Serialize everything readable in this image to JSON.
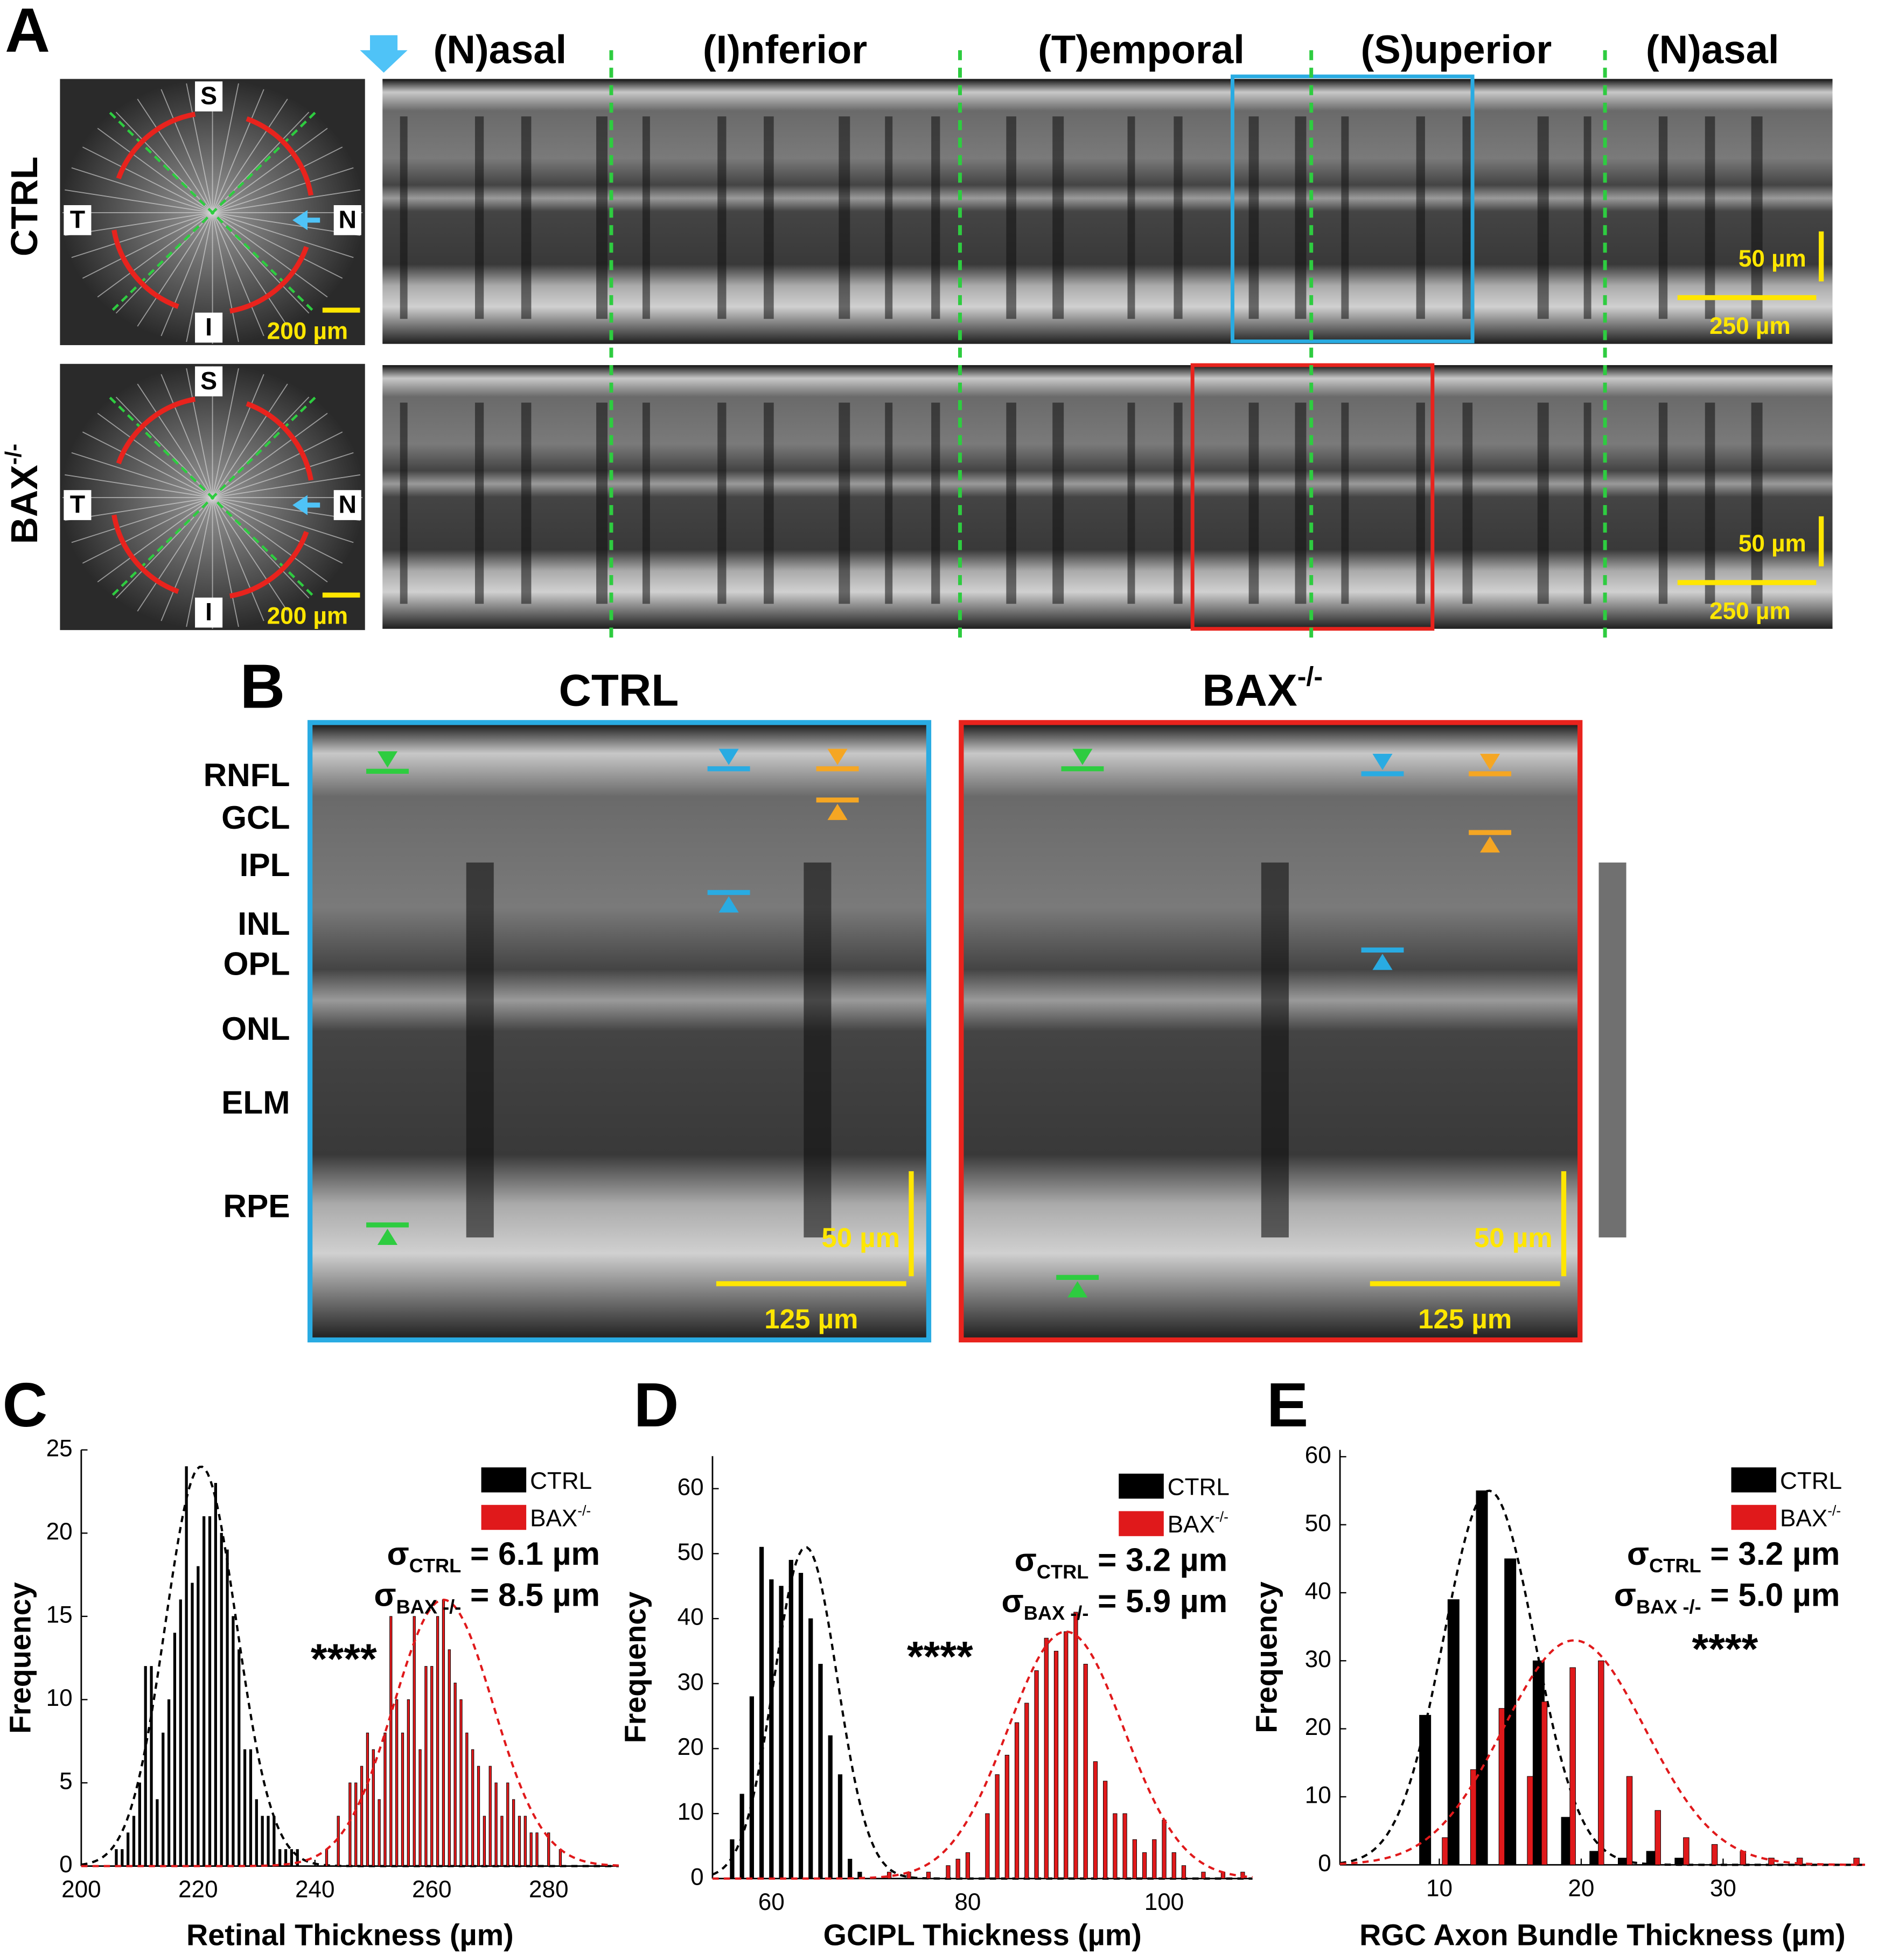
{
  "figure": {
    "panel_labels": [
      "A",
      "B",
      "C",
      "D",
      "E"
    ],
    "a": {
      "regions": [
        "(N)asal",
        "(I)nferior",
        "(T)emporal",
        "(S)uperior",
        "(N)asal"
      ],
      "rows": [
        {
          "label": "CTRL"
        },
        {
          "label": "BAX",
          "sup": "-/-"
        }
      ],
      "orientation": [
        "S",
        "T",
        "N",
        "I"
      ],
      "scale_fundus": "200 µm",
      "scale_depth": "50 µm",
      "scale_length": "250 µm"
    },
    "b": {
      "titles": [
        {
          "label": "CTRL"
        },
        {
          "label": "BAX",
          "sup": "-/-"
        }
      ],
      "layers": [
        "RNFL",
        "GCL",
        "IPL",
        "INL",
        "OPL",
        "ONL",
        "ELM",
        "RPE"
      ],
      "scale_depth": "50 µm",
      "scale_length": "125 µm"
    }
  },
  "chart_data": [
    {
      "type": "histogram",
      "xlabel": "Retinal Thickness (µm)",
      "ylabel": "Frequency",
      "xlim": [
        200,
        292
      ],
      "ylim": [
        0,
        25
      ],
      "xticks": [
        200,
        220,
        240,
        260,
        280
      ],
      "yticks": [
        0,
        5,
        10,
        15,
        20,
        25
      ],
      "legend": "upper right",
      "significance": "****",
      "series": [
        {
          "name": "CTRL",
          "color": "#000000",
          "x": [
            206,
            207,
            208,
            209,
            210,
            211,
            212,
            213,
            214,
            215,
            216,
            217,
            218,
            219,
            220,
            221,
            222,
            223,
            224,
            225,
            226,
            227,
            228,
            229,
            230,
            231,
            232,
            233,
            234,
            235,
            236,
            237
          ],
          "values": [
            1,
            1,
            2,
            3,
            5,
            12,
            12,
            4,
            8,
            10,
            14,
            16,
            24,
            17,
            18,
            21,
            21,
            23,
            20,
            19,
            15,
            13,
            7,
            7,
            4,
            3,
            3,
            3,
            1,
            1,
            1,
            1
          ],
          "fit": {
            "mean": 220.5,
            "sd": 6.1,
            "peak": 24
          }
        },
        {
          "name": "BAX",
          "name_sup": "-/-",
          "color": "#e0191b",
          "x": [
            242,
            244,
            246,
            247,
            248,
            249,
            250,
            251,
            252,
            253,
            254,
            255,
            256,
            257,
            258,
            259,
            260,
            261,
            262,
            263,
            264,
            265,
            266,
            267,
            268,
            269,
            270,
            271,
            272,
            273,
            274,
            275,
            276,
            277,
            278,
            280,
            282
          ],
          "values": [
            1,
            3,
            5,
            5,
            6,
            8,
            7,
            4,
            8,
            15,
            10,
            8,
            10,
            15,
            7,
            12,
            12,
            15,
            16,
            13,
            11,
            10,
            8,
            7,
            6,
            3,
            6,
            5,
            3,
            5,
            4,
            3,
            3,
            2,
            2,
            2,
            1
          ],
          "fit": {
            "mean": 262,
            "sd": 8.5,
            "peak": 16
          }
        }
      ],
      "annotations": [
        {
          "symbol": "σ",
          "sub": "CTRL",
          "text": " = 6.1 µm"
        },
        {
          "symbol": "σ",
          "sub": "BAX -/-",
          "text": " = 8.5 µm"
        }
      ]
    },
    {
      "type": "histogram",
      "xlabel": "GCIPL Thickness (µm)",
      "ylabel": "Frequency",
      "xlim": [
        54,
        109
      ],
      "ylim": [
        0,
        65
      ],
      "xticks": [
        60,
        80,
        100
      ],
      "yticks": [
        0,
        10,
        20,
        30,
        40,
        50,
        60
      ],
      "legend": "upper right",
      "significance": "****",
      "series": [
        {
          "name": "CTRL",
          "color": "#000000",
          "x": [
            56,
            57,
            58,
            59,
            60,
            61,
            62,
            63,
            64,
            65,
            66,
            67,
            68,
            69
          ],
          "values": [
            6,
            13,
            28,
            51,
            46,
            45,
            49,
            47,
            40,
            33,
            22,
            16,
            3,
            1
          ],
          "fit": {
            "mean": 63.5,
            "sd": 3.2,
            "peak": 51
          }
        },
        {
          "name": "BAX",
          "name_sup": "-/-",
          "color": "#e0191b",
          "x": [
            72,
            74,
            76,
            78,
            79,
            80,
            82,
            83,
            84,
            85,
            86,
            87,
            88,
            89,
            90,
            91,
            92,
            93,
            94,
            95,
            96,
            97,
            98,
            99,
            100,
            101,
            102,
            104,
            106,
            108
          ],
          "values": [
            1,
            1,
            1,
            2,
            3,
            4,
            10,
            16,
            19,
            24,
            27,
            32,
            37,
            35,
            38,
            41,
            33,
            18,
            15,
            10,
            10,
            6,
            4,
            6,
            9,
            4,
            2,
            1,
            1,
            1
          ],
          "fit": {
            "mean": 90,
            "sd": 5.9,
            "peak": 38
          }
        }
      ],
      "annotations": [
        {
          "symbol": "σ",
          "sub": "CTRL",
          "text": " = 3.2 µm"
        },
        {
          "symbol": "σ",
          "sub": "BAX -/-",
          "text": " = 5.9 µm"
        }
      ]
    },
    {
      "type": "histogram",
      "xlabel": "RGC Axon Bundle Thickness (µm)",
      "ylabel": "Frequency",
      "xlim": [
        3,
        40
      ],
      "ylim": [
        0,
        61
      ],
      "xticks": [
        10,
        20,
        30
      ],
      "yticks": [
        0,
        10,
        20,
        30,
        40,
        50,
        60
      ],
      "legend": "upper right",
      "significance": "****",
      "series": [
        {
          "name": "CTRL",
          "color": "#000000",
          "x": [
            9,
            11,
            13,
            15,
            17,
            19,
            21,
            23,
            25,
            27
          ],
          "values": [
            22,
            39,
            55,
            45,
            30,
            7,
            2,
            1,
            2,
            1
          ],
          "fit": {
            "mean": 13.5,
            "sd": 3.2,
            "peak": 55
          }
        },
        {
          "name": "BAX",
          "name_sup": "-/-",
          "color": "#e0191b",
          "x": [
            10.4,
            12.4,
            14.4,
            16.4,
            17.4,
            19.4,
            21.4,
            23.4,
            25.4,
            27.4,
            29.4,
            31.4,
            33.4,
            35.4,
            39.4
          ],
          "values": [
            4,
            14,
            23,
            13,
            24,
            29,
            30,
            13,
            8,
            4,
            3,
            2,
            1,
            1,
            1
          ],
          "fit": {
            "mean": 19.5,
            "sd": 5.0,
            "peak": 33
          }
        }
      ],
      "annotations": [
        {
          "symbol": "σ",
          "sub": "CTRL",
          "text": " = 3.2 µm"
        },
        {
          "symbol": "σ",
          "sub": "BAX -/-",
          "text": " = 5.0 µm"
        }
      ]
    }
  ]
}
